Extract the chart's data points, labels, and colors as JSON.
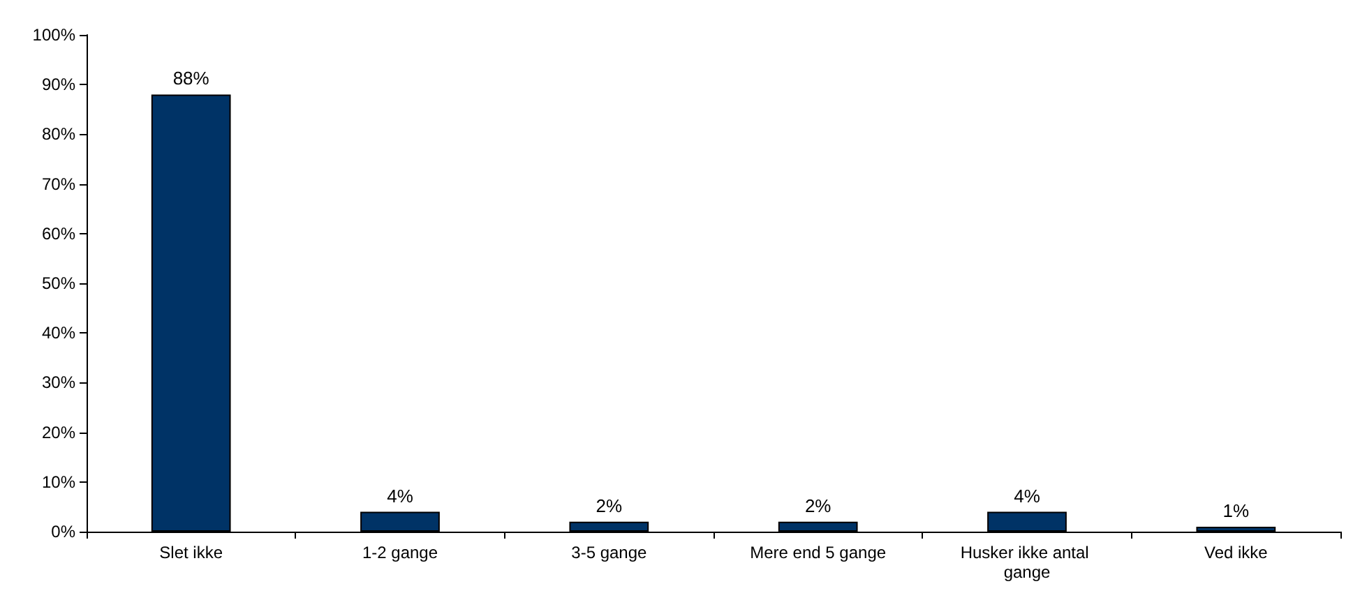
{
  "chart_data": {
    "type": "bar",
    "categories": [
      "Slet ikke",
      "1-2 gange",
      "3-5 gange",
      "Mere end 5 gange",
      "Husker ikke antal gange",
      "Ved ikke"
    ],
    "values": [
      88,
      4,
      2,
      2,
      4,
      1
    ],
    "value_labels": [
      "88%",
      "4%",
      "2%",
      "2%",
      "4%",
      "1%"
    ],
    "color": "#003366",
    "ylim": [
      0,
      100
    ],
    "yticks": [
      {
        "value": 0,
        "label": "0%"
      },
      {
        "value": 10,
        "label": "10%"
      },
      {
        "value": 20,
        "label": "20%"
      },
      {
        "value": 30,
        "label": "30%"
      },
      {
        "value": 40,
        "label": "40%"
      },
      {
        "value": 50,
        "label": "50%"
      },
      {
        "value": 60,
        "label": "60%"
      },
      {
        "value": 70,
        "label": "70%"
      },
      {
        "value": 80,
        "label": "80%"
      },
      {
        "value": 90,
        "label": "90%"
      },
      {
        "value": 100,
        "label": "100%"
      }
    ],
    "grid": false
  }
}
